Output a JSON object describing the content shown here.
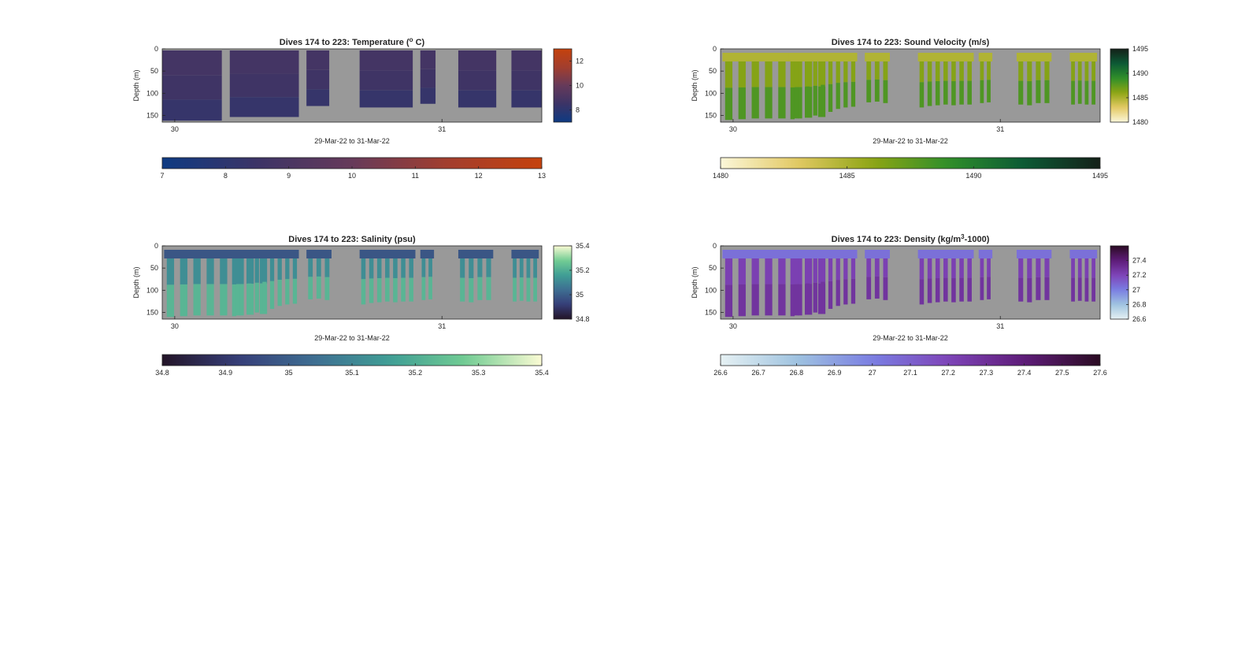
{
  "chart_data": [
    {
      "type": "heatmap",
      "id": "temperature",
      "title": "Dives 174 to 223: Temperature (°C)",
      "title_parts": {
        "main": "Dives 174 to 223: Temperature (",
        "sup": "o",
        "rest": " C)"
      },
      "xlabel": "29-Mar-22 to 31-Mar-22",
      "ylabel": "Depth (m)",
      "xticks": [
        "30",
        "31"
      ],
      "yticks": [
        "0",
        "50",
        "100",
        "150"
      ],
      "ylim": [
        0,
        165
      ],
      "colormap": [
        "#0e3a82",
        "#3c3466",
        "#663a5a",
        "#a23e2e",
        "#c5420d"
      ],
      "clim": [
        7,
        13
      ],
      "side_cbar_ticks": [
        "8",
        "10",
        "12"
      ],
      "side_cbar_values": [
        8,
        10,
        12
      ],
      "bottom_cbar_ticks": [
        "7",
        "8",
        "9",
        "10",
        "11",
        "12",
        "13"
      ],
      "layer_values": [
        8.8,
        8.6,
        8.3
      ],
      "pattern": "solid"
    },
    {
      "type": "heatmap",
      "id": "sound_velocity",
      "title": "Dives 174 to 223: Sound Velocity (m/s)",
      "title_parts": {
        "main": "Dives 174 to 223: Sound Velocity (m/s)",
        "sup": "",
        "rest": ""
      },
      "xlabel": "29-Mar-22 to 31-Mar-22",
      "ylabel": "Depth (m)",
      "xticks": [
        "30",
        "31"
      ],
      "yticks": [
        "0",
        "50",
        "100",
        "150"
      ],
      "ylim": [
        0,
        165
      ],
      "colormap": [
        "#fbf7d9",
        "#e3c964",
        "#8ea514",
        "#2f8f2a",
        "#0c5a35",
        "#142018"
      ],
      "clim": [
        1480,
        1495
      ],
      "side_cbar_ticks": [
        "1480",
        "1485",
        "1490",
        "1495"
      ],
      "side_cbar_values": [
        1480,
        1485,
        1490,
        1495
      ],
      "bottom_cbar_ticks": [
        "1480",
        "1485",
        "1490",
        "1495"
      ],
      "layer_values": [
        1484.8,
        1486.3,
        1488.0
      ],
      "pattern": "bars"
    },
    {
      "type": "heatmap",
      "id": "salinity",
      "title": "Dives 174 to 223: Salinity (psu)",
      "title_parts": {
        "main": "Dives 174 to 223: Salinity (psu)",
        "sup": "",
        "rest": ""
      },
      "xlabel": "29-Mar-22 to 31-Mar-22",
      "ylabel": "Depth (m)",
      "xticks": [
        "30",
        "31"
      ],
      "yticks": [
        "0",
        "50",
        "100",
        "150"
      ],
      "ylim": [
        0,
        165
      ],
      "colormap": [
        "#231427",
        "#363e78",
        "#3e6e92",
        "#3f9e95",
        "#72cc93",
        "#fbfbd4"
      ],
      "clim": [
        34.8,
        35.4
      ],
      "side_cbar_ticks": [
        "34.8",
        "35",
        "35.2",
        "35.4"
      ],
      "side_cbar_values": [
        34.8,
        35.0,
        35.2,
        35.4
      ],
      "bottom_cbar_ticks": [
        "34.8",
        "34.9",
        "35",
        "35.1",
        "35.2",
        "35.3",
        "35.4"
      ],
      "layer_values": [
        34.98,
        35.12,
        35.22
      ],
      "pattern": "bars"
    },
    {
      "type": "heatmap",
      "id": "density",
      "title": "Dives 174 to 223: Density (kg/m³-1000)",
      "title_parts": {
        "main": "Dives 174 to 223: Density (kg/m",
        "sup": "3",
        "rest": "-1000)"
      },
      "xlabel": "29-Mar-22 to 31-Mar-22",
      "ylabel": "Depth (m)",
      "xticks": [
        "30",
        "31"
      ],
      "yticks": [
        "0",
        "50",
        "100",
        "150"
      ],
      "ylim": [
        0,
        165
      ],
      "colormap": [
        "#e6f1f3",
        "#9fc3e0",
        "#7a7ee2",
        "#7e44b8",
        "#5e1c78",
        "#2a0b22"
      ],
      "clim": [
        26.6,
        27.6
      ],
      "side_cbar_ticks": [
        "26.6",
        "26.8",
        "27",
        "27.2",
        "27.4"
      ],
      "side_cbar_values": [
        26.6,
        26.8,
        27.0,
        27.2,
        27.4
      ],
      "bottom_cbar_ticks": [
        "26.6",
        "26.7",
        "26.8",
        "26.9",
        "27",
        "27.1",
        "27.2",
        "27.3",
        "27.4",
        "27.5",
        "27.6"
      ],
      "layer_values": [
        27.05,
        27.22,
        27.28
      ],
      "pattern": "bars"
    }
  ]
}
